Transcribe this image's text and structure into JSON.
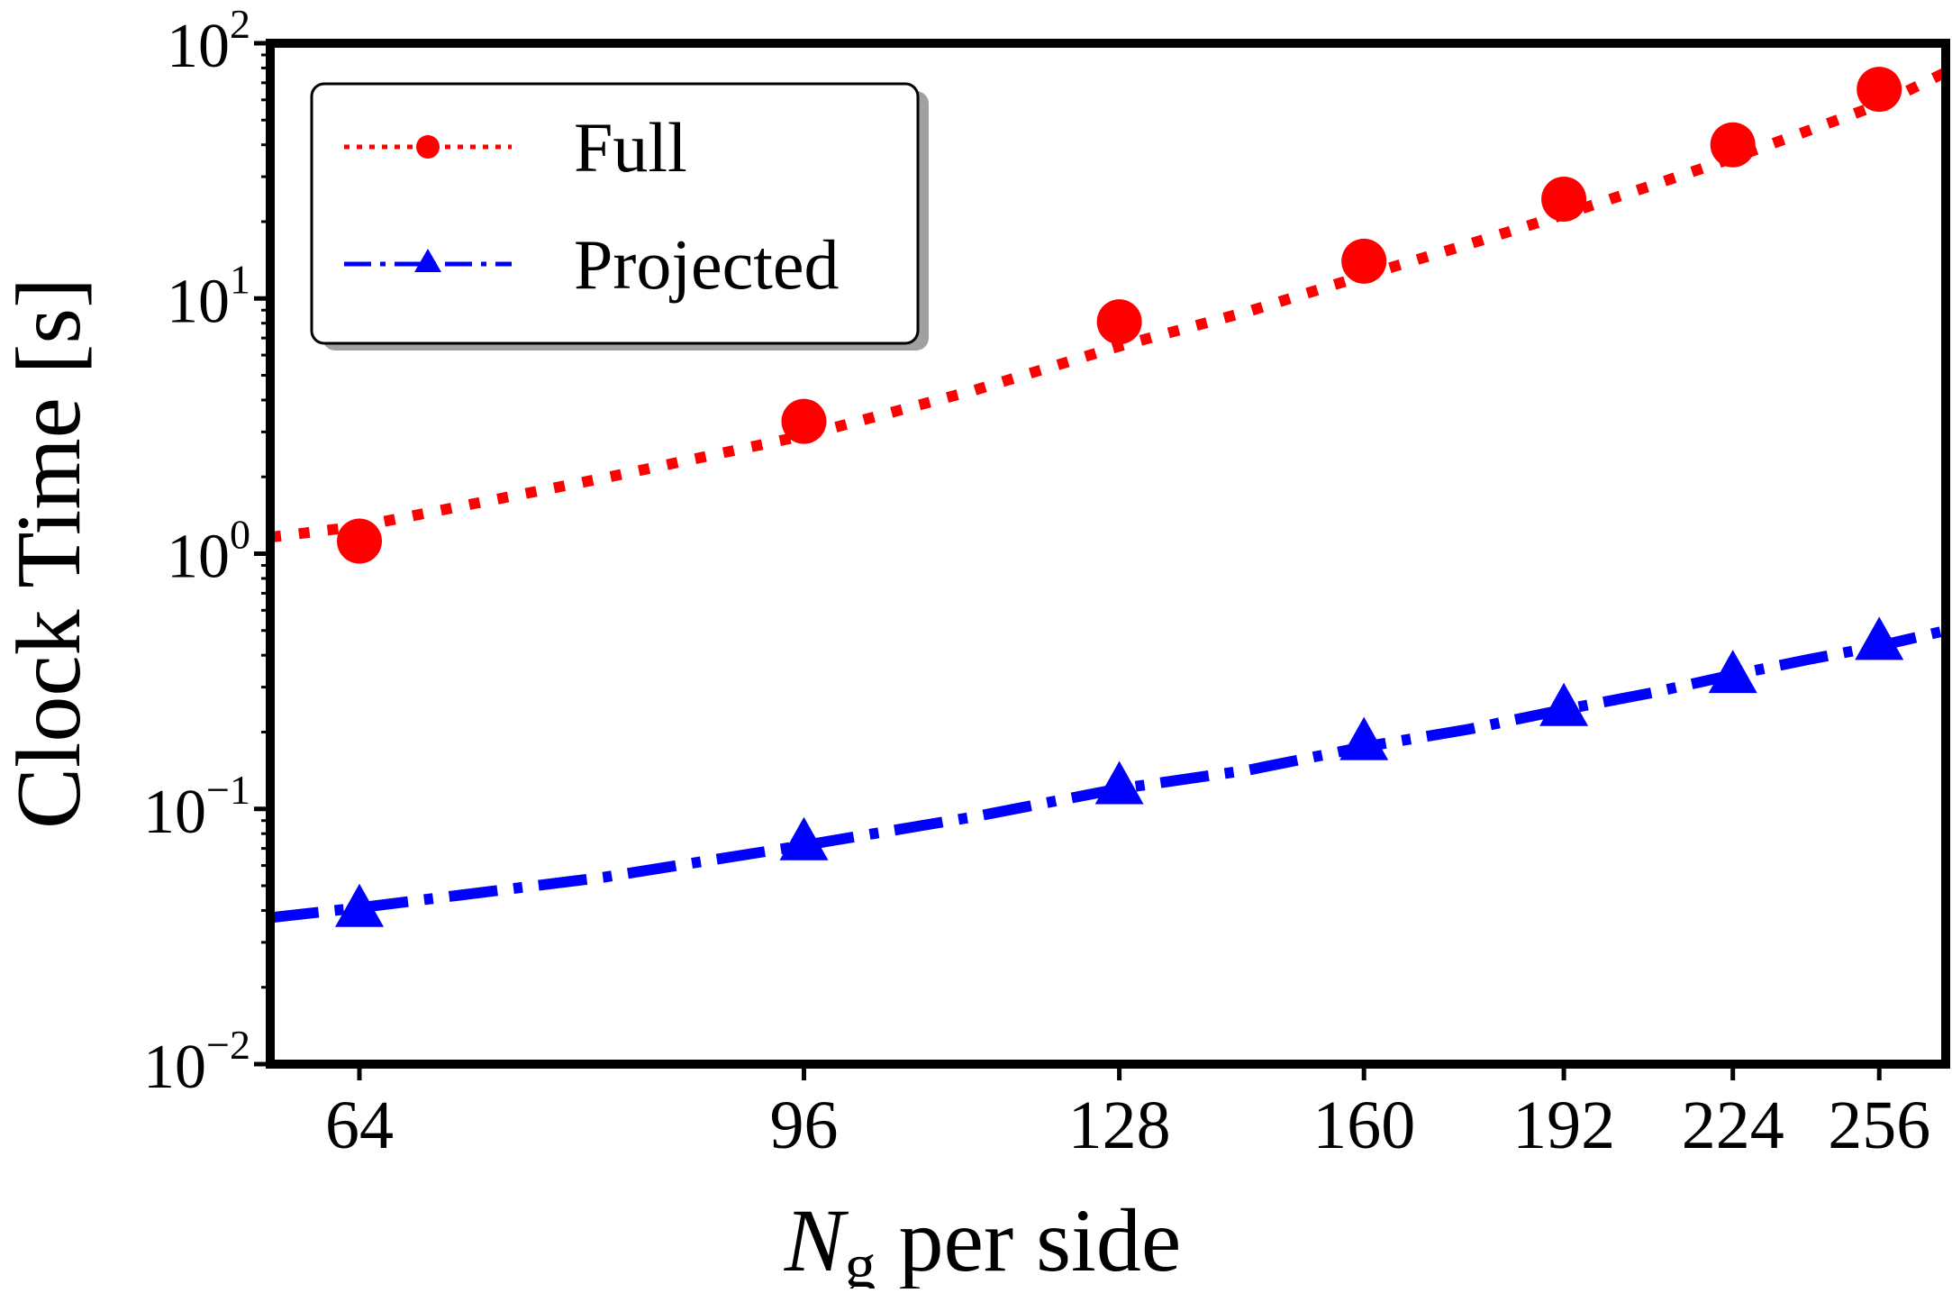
{
  "chart_data": {
    "type": "line",
    "xlabel_main": "N",
    "xlabel_sub": "g",
    "xlabel_rest": " per side",
    "ylabel": "Clock Time [s]",
    "xscale": "log",
    "yscale": "log",
    "xlim": [
      59,
      272
    ],
    "ylim": [
      0.01,
      100
    ],
    "x_ticks": [
      64,
      96,
      128,
      160,
      192,
      224,
      256
    ],
    "y_ticks": [
      {
        "value": 0.01,
        "base": "10",
        "exp": "−2"
      },
      {
        "value": 0.1,
        "base": "10",
        "exp": "−1"
      },
      {
        "value": 1,
        "base": "10",
        "exp": "0"
      },
      {
        "value": 10,
        "base": "10",
        "exp": "1"
      },
      {
        "value": 100,
        "base": "10",
        "exp": "2"
      }
    ],
    "legend_position": "top-left",
    "series": [
      {
        "name": "Full",
        "color": "#ff0000",
        "linestyle": "dotted",
        "marker": "circle",
        "x": [
          64,
          96,
          128,
          160,
          192,
          224,
          256
        ],
        "y": [
          1.12,
          3.3,
          8.1,
          14.0,
          24.5,
          40.0,
          66.0
        ],
        "fit": [
          [
            59,
            1.16
          ],
          [
            64,
            1.28
          ],
          [
            80,
            1.98
          ],
          [
            96,
            2.9
          ],
          [
            112,
            4.35
          ],
          [
            128,
            6.5
          ],
          [
            144,
            8.9
          ],
          [
            160,
            12.3
          ],
          [
            176,
            16.3
          ],
          [
            192,
            21.3
          ],
          [
            208,
            27.7
          ],
          [
            224,
            35.5
          ],
          [
            240,
            45.5
          ],
          [
            256,
            57.5
          ],
          [
            272,
            77.0
          ]
        ]
      },
      {
        "name": "Projected",
        "color": "#0000ff",
        "linestyle": "dashdot",
        "marker": "triangle",
        "x": [
          64,
          96,
          128,
          160,
          192,
          224,
          256
        ],
        "y": [
          0.04,
          0.073,
          0.121,
          0.18,
          0.245,
          0.33,
          0.445
        ],
        "fit": [
          [
            59,
            0.0375
          ],
          [
            64,
            0.041
          ],
          [
            80,
            0.054
          ],
          [
            96,
            0.072
          ],
          [
            112,
            0.093
          ],
          [
            128,
            0.12
          ],
          [
            144,
            0.142
          ],
          [
            160,
            0.175
          ],
          [
            176,
            0.205
          ],
          [
            192,
            0.245
          ],
          [
            208,
            0.285
          ],
          [
            224,
            0.335
          ],
          [
            240,
            0.385
          ],
          [
            256,
            0.435
          ],
          [
            272,
            0.5
          ]
        ]
      }
    ]
  }
}
